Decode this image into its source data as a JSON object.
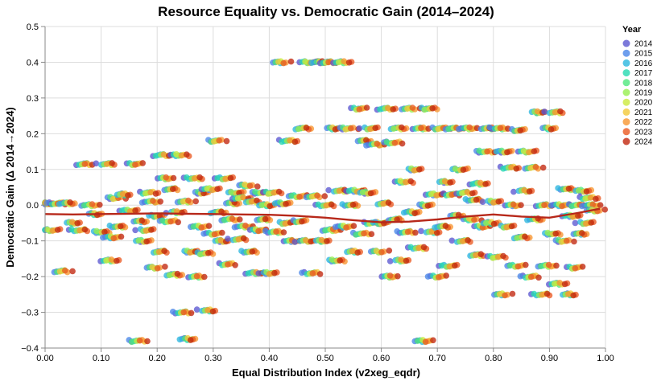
{
  "chart_data": {
    "type": "scatter",
    "title": "Resource Equality vs. Democratic Gain (2014–2024)",
    "xlabel": "Equal Distribution Index (v2xeg_eqdr)",
    "ylabel": "Democratic Gain (Δ 2014→2024)",
    "xlim": [
      0.0,
      1.0
    ],
    "ylim": [
      -0.4,
      0.5
    ],
    "x_ticks": [
      "0.00",
      "0.10",
      "0.20",
      "0.30",
      "0.40",
      "0.50",
      "0.60",
      "0.70",
      "0.80",
      "0.90",
      "1.00"
    ],
    "y_ticks": [
      "0.5",
      "0.4",
      "0.3",
      "0.2",
      "0.1",
      "0.0",
      "−0.1",
      "−0.2",
      "−0.3",
      "−0.4"
    ],
    "grid": true,
    "legend": {
      "title": "Year",
      "placement": "top-right",
      "entries": [
        {
          "label": "2014",
          "color": "#5b57d1"
        },
        {
          "label": "2015",
          "color": "#4a86e8"
        },
        {
          "label": "2016",
          "color": "#2bb6de"
        },
        {
          "label": "2017",
          "color": "#25d9b0"
        },
        {
          "label": "2018",
          "color": "#4fe77d"
        },
        {
          "label": "2019",
          "color": "#97ef4f"
        },
        {
          "label": "2020",
          "color": "#ccea3e"
        },
        {
          "label": "2021",
          "color": "#f2c93a"
        },
        {
          "label": "2022",
          "color": "#f7962f"
        },
        {
          "label": "2023",
          "color": "#eb5a22"
        },
        {
          "label": "2024",
          "color": "#c2270e"
        }
      ]
    },
    "countries": [
      [
        0.0,
        0.005
      ],
      [
        0.01,
        -0.07
      ],
      [
        0.02,
        0.005
      ],
      [
        0.03,
        -0.185
      ],
      [
        0.04,
        0.005
      ],
      [
        0.05,
        -0.05
      ],
      [
        0.06,
        -0.07
      ],
      [
        0.07,
        0.115
      ],
      [
        0.08,
        0.0
      ],
      [
        0.09,
        -0.025
      ],
      [
        0.1,
        -0.075
      ],
      [
        0.11,
        0.115
      ],
      [
        0.115,
        -0.155
      ],
      [
        0.12,
        -0.09
      ],
      [
        0.125,
        0.02
      ],
      [
        0.13,
        -0.06
      ],
      [
        0.14,
        0.03
      ],
      [
        0.15,
        -0.015
      ],
      [
        0.16,
        0.115
      ],
      [
        0.165,
        -0.38
      ],
      [
        0.17,
        -0.045
      ],
      [
        0.175,
        -0.1
      ],
      [
        0.18,
        -0.07
      ],
      [
        0.185,
        0.035
      ],
      [
        0.19,
        0.01
      ],
      [
        0.195,
        -0.175
      ],
      [
        0.2,
        -0.03
      ],
      [
        0.205,
        -0.13
      ],
      [
        0.21,
        0.14
      ],
      [
        0.215,
        0.075
      ],
      [
        0.22,
        -0.045
      ],
      [
        0.225,
        0.045
      ],
      [
        0.23,
        -0.195
      ],
      [
        0.235,
        -0.02
      ],
      [
        0.24,
        0.14
      ],
      [
        0.245,
        -0.3
      ],
      [
        0.25,
        0.01
      ],
      [
        0.255,
        -0.375
      ],
      [
        0.26,
        -0.13
      ],
      [
        0.265,
        0.075
      ],
      [
        0.27,
        -0.2
      ],
      [
        0.275,
        -0.06
      ],
      [
        0.28,
        0.035
      ],
      [
        0.285,
        -0.135
      ],
      [
        0.29,
        -0.295
      ],
      [
        0.295,
        0.045
      ],
      [
        0.3,
        -0.08
      ],
      [
        0.305,
        0.18
      ],
      [
        0.31,
        -0.02
      ],
      [
        0.315,
        -0.1
      ],
      [
        0.32,
        0.075
      ],
      [
        0.325,
        -0.165
      ],
      [
        0.33,
        -0.04
      ],
      [
        0.335,
        0.005
      ],
      [
        0.34,
        0.035
      ],
      [
        0.345,
        -0.095
      ],
      [
        0.35,
        0.02
      ],
      [
        0.355,
        -0.06
      ],
      [
        0.36,
        0.055
      ],
      [
        0.365,
        -0.13
      ],
      [
        0.37,
        0.01
      ],
      [
        0.375,
        -0.19
      ],
      [
        0.38,
        -0.07
      ],
      [
        0.385,
        0.035
      ],
      [
        0.39,
        -0.04
      ],
      [
        0.395,
        0.0
      ],
      [
        0.4,
        -0.19
      ],
      [
        0.405,
        0.035
      ],
      [
        0.41,
        -0.075
      ],
      [
        0.42,
        0.4
      ],
      [
        0.425,
        0.005
      ],
      [
        0.43,
        -0.05
      ],
      [
        0.435,
        0.18
      ],
      [
        0.44,
        -0.1
      ],
      [
        0.45,
        0.025
      ],
      [
        0.455,
        -0.045
      ],
      [
        0.46,
        0.215
      ],
      [
        0.465,
        -0.1
      ],
      [
        0.47,
        0.4
      ],
      [
        0.475,
        -0.19
      ],
      [
        0.48,
        0.025
      ],
      [
        0.49,
        0.4
      ],
      [
        0.495,
        -0.1
      ],
      [
        0.5,
        0.0
      ],
      [
        0.505,
        0.4
      ],
      [
        0.51,
        -0.07
      ],
      [
        0.515,
        0.215
      ],
      [
        0.52,
        -0.155
      ],
      [
        0.525,
        0.04
      ],
      [
        0.53,
        0.4
      ],
      [
        0.535,
        -0.06
      ],
      [
        0.54,
        0.215
      ],
      [
        0.545,
        0.0
      ],
      [
        0.55,
        -0.13
      ],
      [
        0.555,
        0.04
      ],
      [
        0.56,
        0.27
      ],
      [
        0.565,
        -0.08
      ],
      [
        0.57,
        0.18
      ],
      [
        0.575,
        0.035
      ],
      [
        0.58,
        0.215
      ],
      [
        0.585,
        -0.05
      ],
      [
        0.59,
        0.17
      ],
      [
        0.595,
        -0.13
      ],
      [
        0.6,
        -0.05
      ],
      [
        0.605,
        0.005
      ],
      [
        0.61,
        0.27
      ],
      [
        0.615,
        -0.2
      ],
      [
        0.62,
        0.175
      ],
      [
        0.625,
        -0.04
      ],
      [
        0.63,
        0.215
      ],
      [
        0.635,
        -0.155
      ],
      [
        0.64,
        0.065
      ],
      [
        0.645,
        -0.075
      ],
      [
        0.65,
        0.27
      ],
      [
        0.655,
        -0.02
      ],
      [
        0.66,
        0.1
      ],
      [
        0.665,
        -0.12
      ],
      [
        0.67,
        0.215
      ],
      [
        0.675,
        -0.38
      ],
      [
        0.68,
        0.0
      ],
      [
        0.685,
        0.27
      ],
      [
        0.69,
        -0.075
      ],
      [
        0.695,
        0.03
      ],
      [
        0.7,
        -0.2
      ],
      [
        0.705,
        0.215
      ],
      [
        0.71,
        -0.06
      ],
      [
        0.715,
        0.065
      ],
      [
        0.72,
        -0.17
      ],
      [
        0.725,
        0.03
      ],
      [
        0.73,
        0.215
      ],
      [
        0.735,
        -0.03
      ],
      [
        0.74,
        0.1
      ],
      [
        0.745,
        -0.1
      ],
      [
        0.75,
        0.035
      ],
      [
        0.755,
        0.215
      ],
      [
        0.76,
        -0.04
      ],
      [
        0.765,
        0.015
      ],
      [
        0.77,
        -0.14
      ],
      [
        0.775,
        0.06
      ],
      [
        0.78,
        -0.06
      ],
      [
        0.785,
        0.15
      ],
      [
        0.79,
        0.215
      ],
      [
        0.795,
        -0.05
      ],
      [
        0.8,
        0.01
      ],
      [
        0.805,
        -0.145
      ],
      [
        0.81,
        0.215
      ],
      [
        0.815,
        -0.25
      ],
      [
        0.82,
        0.15
      ],
      [
        0.825,
        -0.06
      ],
      [
        0.83,
        0.105
      ],
      [
        0.835,
        0.0
      ],
      [
        0.84,
        -0.17
      ],
      [
        0.845,
        0.21
      ],
      [
        0.85,
        -0.09
      ],
      [
        0.855,
        0.04
      ],
      [
        0.86,
        0.15
      ],
      [
        0.865,
        -0.2
      ],
      [
        0.87,
        0.105
      ],
      [
        0.875,
        -0.04
      ],
      [
        0.88,
        0.26
      ],
      [
        0.885,
        -0.25
      ],
      [
        0.89,
        0.0
      ],
      [
        0.895,
        -0.17
      ],
      [
        0.9,
        0.215
      ],
      [
        0.905,
        -0.08
      ],
      [
        0.91,
        0.26
      ],
      [
        0.915,
        -0.22
      ],
      [
        0.92,
        0.0
      ],
      [
        0.925,
        -0.1
      ],
      [
        0.93,
        0.045
      ],
      [
        0.935,
        -0.25
      ],
      [
        0.94,
        -0.03
      ],
      [
        0.945,
        -0.175
      ],
      [
        0.95,
        0.0
      ],
      [
        0.955,
        -0.08
      ],
      [
        0.96,
        0.04
      ],
      [
        0.965,
        -0.05
      ],
      [
        0.97,
        0.02
      ],
      [
        0.975,
        0.0
      ],
      [
        0.98,
        -0.015
      ]
    ],
    "trend_line": {
      "color": "#b7281a",
      "x": [
        0.0,
        0.05,
        0.1,
        0.15,
        0.2,
        0.25,
        0.3,
        0.35,
        0.4,
        0.45,
        0.5,
        0.55,
        0.6,
        0.65,
        0.7,
        0.75,
        0.8,
        0.85,
        0.9,
        0.95,
        0.99
      ],
      "y": [
        -0.025,
        -0.026,
        -0.025,
        -0.024,
        -0.023,
        -0.024,
        -0.025,
        -0.026,
        -0.027,
        -0.03,
        -0.035,
        -0.042,
        -0.048,
        -0.046,
        -0.04,
        -0.032,
        -0.026,
        -0.032,
        -0.035,
        -0.022,
        -0.01
      ]
    }
  }
}
